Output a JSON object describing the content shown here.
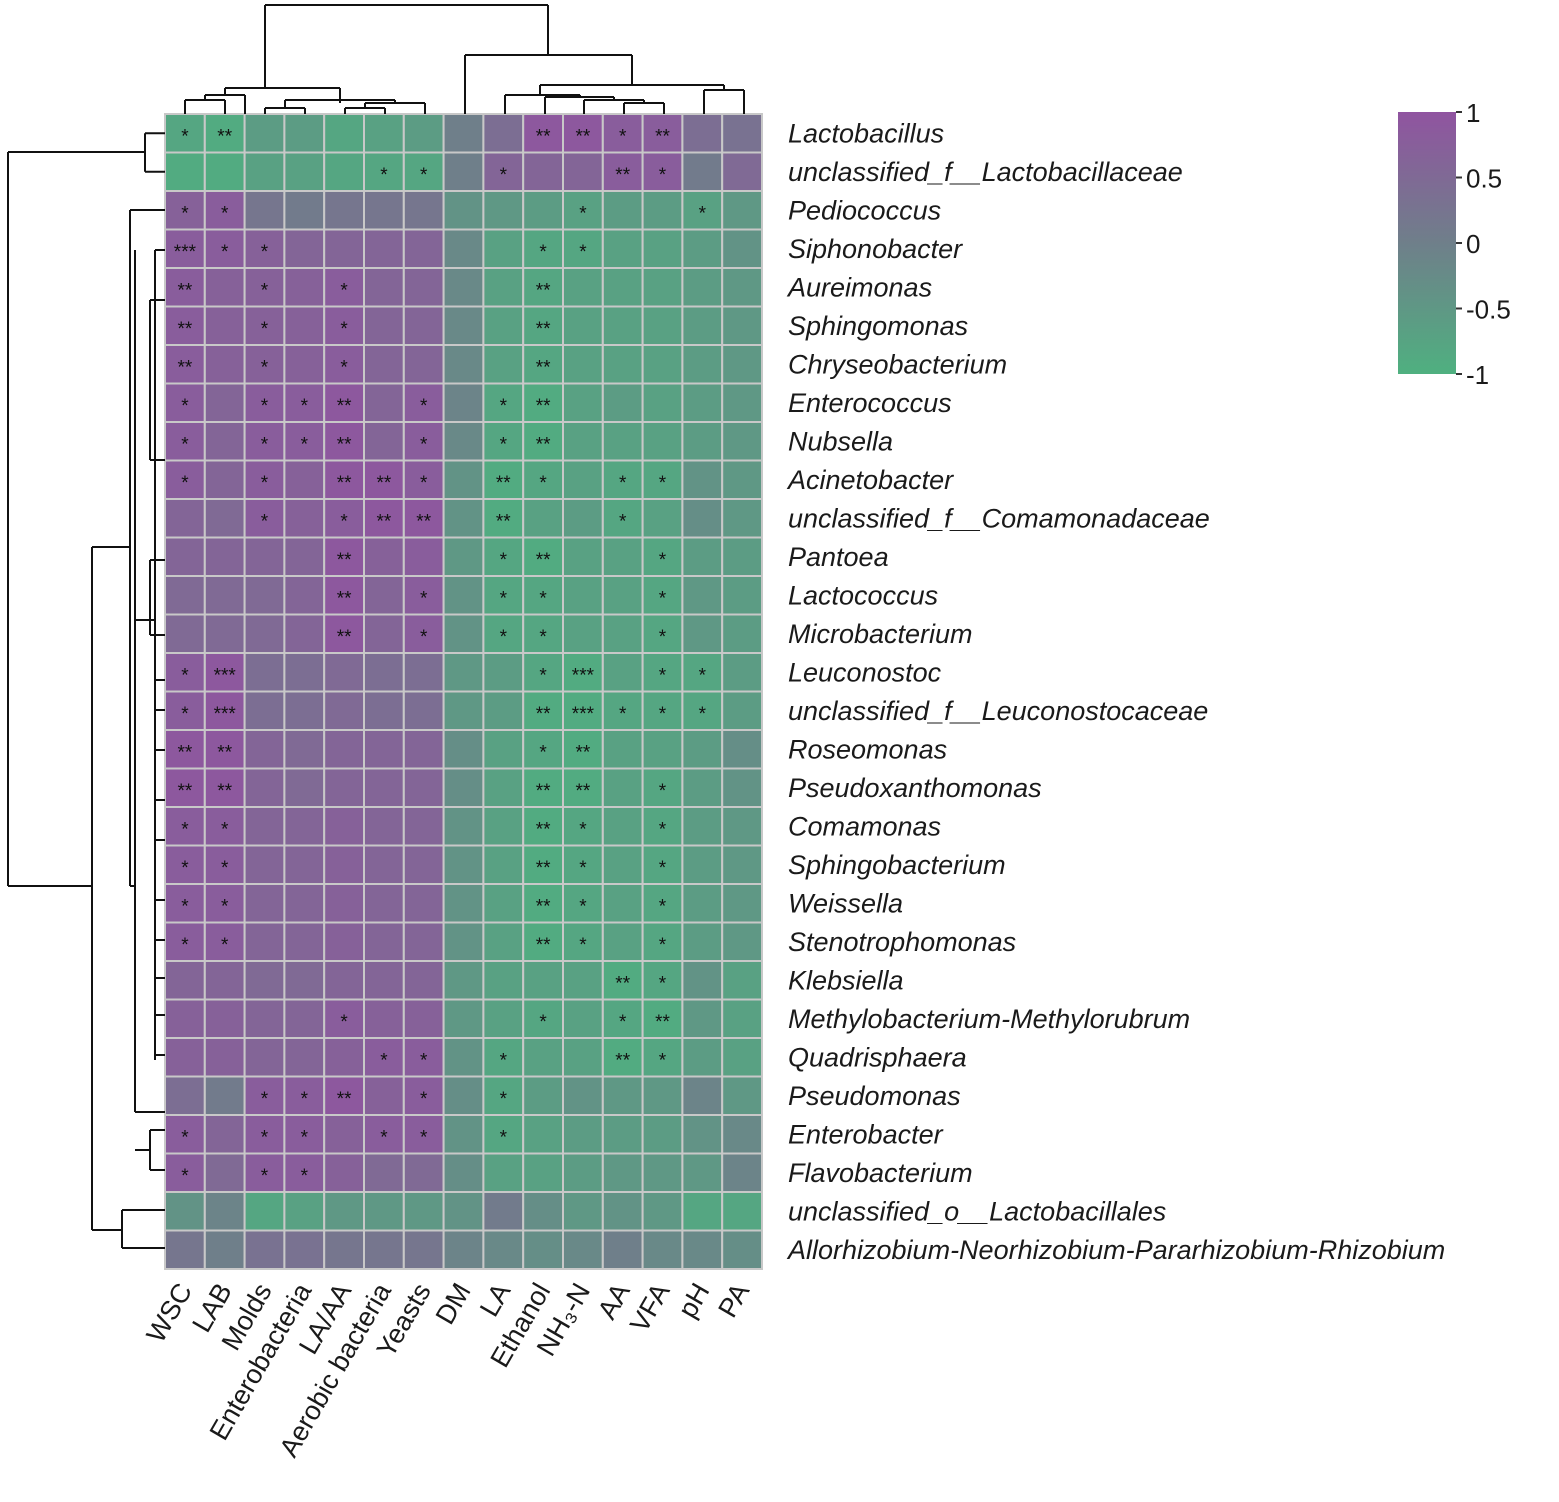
{
  "chart_data": {
    "type": "heatmap",
    "title": "",
    "columns": [
      "WSC",
      "LAB",
      "Molds",
      "Enterobacteria",
      "LA/AA",
      "Aerobic bacteria",
      "Yeasts",
      "DM",
      "LA",
      "Ethanol",
      "NH₃-N",
      "AA",
      "VFA",
      "pH",
      "PA"
    ],
    "rows": [
      "Lactobacillus",
      "unclassified_f__Lactobacillaceae",
      "Pediococcus",
      "Siphonobacter",
      "Aureimonas",
      "Sphingomonas",
      "Chryseobacterium",
      "Enterococcus",
      "Nubsella",
      "Acinetobacter",
      "unclassified_f__Comamonadaceae",
      "Pantoea",
      "Lactococcus",
      "Microbacterium",
      "Leuconostoc",
      "unclassified_f__Leuconostocaceae",
      "Roseomonas",
      "Pseudoxanthomonas",
      "Comamonas",
      "Sphingobacterium",
      "Weissella",
      "Stenotrophomonas",
      "Klebsiella",
      "Methylobacterium-Methylorubrum",
      "Quadrisphaera",
      "Pseudomonas",
      "Enterobacter",
      "Flavobacterium",
      "unclassified_o__Lactobacillales",
      "Allorhizobium-Neorhizobium-Pararhizobium-Rhizobium"
    ],
    "values": [
      [
        -0.8,
        -0.9,
        -0.6,
        -0.6,
        -0.8,
        -0.7,
        -0.6,
        0.0,
        0.4,
        0.9,
        0.9,
        0.8,
        0.8,
        0.4,
        0.3
      ],
      [
        -0.9,
        -0.9,
        -0.7,
        -0.7,
        -0.8,
        -0.8,
        -0.8,
        0.0,
        0.6,
        0.6,
        0.6,
        0.8,
        0.8,
        0.1,
        0.5
      ],
      [
        0.7,
        0.8,
        0.2,
        0.1,
        0.2,
        0.2,
        0.2,
        -0.4,
        -0.5,
        -0.6,
        -0.7,
        -0.6,
        -0.6,
        -0.7,
        -0.5
      ],
      [
        0.8,
        0.8,
        0.7,
        0.6,
        0.6,
        0.6,
        0.6,
        -0.2,
        -0.7,
        -0.8,
        -0.8,
        -0.7,
        -0.7,
        -0.6,
        -0.4
      ],
      [
        0.8,
        0.7,
        0.7,
        0.7,
        0.8,
        0.6,
        0.6,
        -0.2,
        -0.7,
        -0.8,
        -0.7,
        -0.7,
        -0.7,
        -0.6,
        -0.5
      ],
      [
        0.8,
        0.7,
        0.7,
        0.7,
        0.8,
        0.6,
        0.6,
        -0.2,
        -0.7,
        -0.8,
        -0.7,
        -0.7,
        -0.7,
        -0.6,
        -0.5
      ],
      [
        0.8,
        0.7,
        0.7,
        0.7,
        0.8,
        0.6,
        0.6,
        -0.2,
        -0.7,
        -0.8,
        -0.7,
        -0.7,
        -0.7,
        -0.6,
        -0.5
      ],
      [
        0.8,
        0.6,
        0.8,
        0.8,
        0.9,
        0.6,
        0.8,
        -0.1,
        -0.8,
        -0.9,
        -0.7,
        -0.6,
        -0.7,
        -0.6,
        -0.5
      ],
      [
        0.8,
        0.6,
        0.8,
        0.8,
        0.9,
        0.6,
        0.8,
        -0.2,
        -0.8,
        -0.9,
        -0.7,
        -0.7,
        -0.7,
        -0.6,
        -0.5
      ],
      [
        0.8,
        0.6,
        0.8,
        0.7,
        0.9,
        0.9,
        0.8,
        -0.4,
        -0.9,
        -0.8,
        -0.7,
        -0.8,
        -0.8,
        -0.4,
        -0.5
      ],
      [
        0.6,
        0.5,
        0.8,
        0.7,
        0.8,
        0.9,
        0.9,
        -0.4,
        -0.9,
        -0.7,
        -0.6,
        -0.8,
        -0.7,
        -0.3,
        -0.5
      ],
      [
        0.6,
        0.6,
        0.6,
        0.6,
        0.9,
        0.7,
        0.8,
        -0.5,
        -0.8,
        -0.9,
        -0.7,
        -0.7,
        -0.8,
        -0.6,
        -0.6
      ],
      [
        0.5,
        0.5,
        0.5,
        0.6,
        0.9,
        0.6,
        0.8,
        -0.4,
        -0.8,
        -0.8,
        -0.7,
        -0.7,
        -0.8,
        -0.5,
        -0.6
      ],
      [
        0.5,
        0.5,
        0.5,
        0.6,
        0.9,
        0.6,
        0.8,
        -0.4,
        -0.8,
        -0.8,
        -0.7,
        -0.7,
        -0.8,
        -0.5,
        -0.6
      ],
      [
        0.8,
        0.9,
        0.4,
        0.4,
        0.5,
        0.4,
        0.4,
        -0.5,
        -0.6,
        -0.8,
        -0.9,
        -0.7,
        -0.8,
        -0.8,
        -0.6
      ],
      [
        0.8,
        0.9,
        0.4,
        0.4,
        0.5,
        0.4,
        0.4,
        -0.5,
        -0.6,
        -0.9,
        -0.9,
        -0.8,
        -0.8,
        -0.8,
        -0.6
      ],
      [
        0.9,
        0.9,
        0.6,
        0.5,
        0.6,
        0.6,
        0.6,
        -0.3,
        -0.7,
        -0.8,
        -0.9,
        -0.7,
        -0.7,
        -0.6,
        -0.3
      ],
      [
        0.9,
        0.9,
        0.6,
        0.5,
        0.6,
        0.6,
        0.6,
        -0.3,
        -0.7,
        -0.9,
        -0.9,
        -0.7,
        -0.8,
        -0.6,
        -0.4
      ],
      [
        0.8,
        0.8,
        0.6,
        0.6,
        0.7,
        0.6,
        0.6,
        -0.4,
        -0.7,
        -0.9,
        -0.8,
        -0.7,
        -0.8,
        -0.6,
        -0.5
      ],
      [
        0.8,
        0.8,
        0.6,
        0.6,
        0.7,
        0.6,
        0.6,
        -0.4,
        -0.7,
        -0.9,
        -0.8,
        -0.7,
        -0.8,
        -0.6,
        -0.5
      ],
      [
        0.8,
        0.8,
        0.6,
        0.6,
        0.7,
        0.6,
        0.6,
        -0.4,
        -0.7,
        -0.9,
        -0.8,
        -0.7,
        -0.8,
        -0.6,
        -0.5
      ],
      [
        0.8,
        0.8,
        0.6,
        0.6,
        0.7,
        0.6,
        0.6,
        -0.4,
        -0.7,
        -0.9,
        -0.8,
        -0.7,
        -0.8,
        -0.6,
        -0.5
      ],
      [
        0.6,
        0.6,
        0.5,
        0.5,
        0.6,
        0.6,
        0.6,
        -0.5,
        -0.7,
        -0.7,
        -0.7,
        -0.9,
        -0.8,
        -0.4,
        -0.7
      ],
      [
        0.7,
        0.7,
        0.6,
        0.6,
        0.8,
        0.7,
        0.7,
        -0.5,
        -0.7,
        -0.8,
        -0.7,
        -0.8,
        -0.9,
        -0.5,
        -0.7
      ],
      [
        0.7,
        0.7,
        0.6,
        0.6,
        0.7,
        0.8,
        0.8,
        -0.4,
        -0.8,
        -0.7,
        -0.7,
        -0.9,
        -0.8,
        -0.6,
        -0.7
      ],
      [
        0.4,
        0.1,
        0.8,
        0.8,
        0.9,
        0.7,
        0.8,
        -0.3,
        -0.8,
        -0.6,
        -0.4,
        -0.5,
        -0.5,
        -0.1,
        -0.5
      ],
      [
        0.8,
        0.6,
        0.8,
        0.8,
        0.7,
        0.8,
        0.8,
        -0.4,
        -0.8,
        -0.7,
        -0.6,
        -0.6,
        -0.6,
        -0.4,
        -0.2
      ],
      [
        0.8,
        0.5,
        0.8,
        0.8,
        0.7,
        0.5,
        0.5,
        -0.3,
        -0.7,
        -0.7,
        -0.6,
        -0.5,
        -0.5,
        -0.5,
        -0.1
      ],
      [
        -0.4,
        -0.1,
        -0.8,
        -0.7,
        -0.5,
        -0.5,
        -0.5,
        -0.4,
        0.1,
        -0.3,
        -0.5,
        -0.4,
        -0.5,
        -0.8,
        -0.8
      ],
      [
        0.2,
        0.0,
        0.3,
        0.3,
        0.2,
        0.2,
        0.2,
        -0.1,
        -0.2,
        -0.3,
        -0.2,
        0.0,
        -0.2,
        -0.2,
        -0.3
      ]
    ],
    "significance": [
      [
        "*",
        "**",
        "",
        "",
        "",
        "",
        "",
        "",
        "",
        "**",
        "**",
        "*",
        "**",
        "",
        ""
      ],
      [
        "",
        "",
        "",
        "",
        "",
        "*",
        "*",
        "",
        "*",
        "",
        "",
        "**",
        "*",
        "",
        ""
      ],
      [
        "*",
        "*",
        "",
        "",
        "",
        "",
        "",
        "",
        "",
        "",
        "*",
        "",
        "",
        "*",
        ""
      ],
      [
        "***",
        "*",
        "*",
        "",
        "",
        "",
        "",
        "",
        "",
        "*",
        "*",
        "",
        "",
        "",
        ""
      ],
      [
        "**",
        "",
        "*",
        "",
        "*",
        "",
        "",
        "",
        "",
        "**",
        "",
        "",
        "",
        "",
        ""
      ],
      [
        "**",
        "",
        "*",
        "",
        "*",
        "",
        "",
        "",
        "",
        "**",
        "",
        "",
        "",
        "",
        ""
      ],
      [
        "**",
        "",
        "*",
        "",
        "*",
        "",
        "",
        "",
        "",
        "**",
        "",
        "",
        "",
        "",
        ""
      ],
      [
        "*",
        "",
        "*",
        "*",
        "**",
        "",
        "*",
        "",
        "*",
        "**",
        "",
        "",
        "",
        "",
        ""
      ],
      [
        "*",
        "",
        "*",
        "*",
        "**",
        "",
        "*",
        "",
        "*",
        "**",
        "",
        "",
        "",
        "",
        ""
      ],
      [
        "*",
        "",
        "*",
        "",
        "**",
        "**",
        "*",
        "",
        "**",
        "*",
        "",
        "*",
        "*",
        "",
        ""
      ],
      [
        "",
        "",
        "*",
        "",
        "*",
        "**",
        "**",
        "",
        "**",
        "",
        "",
        "*",
        "",
        "",
        ""
      ],
      [
        "",
        "",
        "",
        "",
        "**",
        "",
        "",
        "",
        "*",
        "**",
        "",
        "",
        "*",
        "",
        ""
      ],
      [
        "",
        "",
        "",
        "",
        "**",
        "",
        "*",
        "",
        "*",
        "*",
        "",
        "",
        "*",
        "",
        ""
      ],
      [
        "",
        "",
        "",
        "",
        "**",
        "",
        "*",
        "",
        "*",
        "*",
        "",
        "",
        "*",
        "",
        ""
      ],
      [
        "*",
        "***",
        "",
        "",
        "",
        "",
        "",
        "",
        "",
        "*",
        "***",
        "",
        "*",
        "*",
        ""
      ],
      [
        "*",
        "***",
        "",
        "",
        "",
        "",
        "",
        "",
        "",
        "**",
        "***",
        "*",
        "*",
        "*",
        ""
      ],
      [
        "**",
        "**",
        "",
        "",
        "",
        "",
        "",
        "",
        "",
        "*",
        "**",
        "",
        "",
        "",
        ""
      ],
      [
        "**",
        "**",
        "",
        "",
        "",
        "",
        "",
        "",
        "",
        "**",
        "**",
        "",
        "*",
        "",
        ""
      ],
      [
        "*",
        "*",
        "",
        "",
        "",
        "",
        "",
        "",
        "",
        "**",
        "*",
        "",
        "*",
        "",
        ""
      ],
      [
        "*",
        "*",
        "",
        "",
        "",
        "",
        "",
        "",
        "",
        "**",
        "*",
        "",
        "*",
        "",
        ""
      ],
      [
        "*",
        "*",
        "",
        "",
        "",
        "",
        "",
        "",
        "",
        "**",
        "*",
        "",
        "*",
        "",
        ""
      ],
      [
        "*",
        "*",
        "",
        "",
        "",
        "",
        "",
        "",
        "",
        "**",
        "*",
        "",
        "*",
        "",
        ""
      ],
      [
        "",
        "",
        "",
        "",
        "",
        "",
        "",
        "",
        "",
        "",
        "",
        "**",
        "*",
        "",
        ""
      ],
      [
        "",
        "",
        "",
        "",
        "*",
        "",
        "",
        "",
        "",
        "*",
        "",
        "*",
        "**",
        "",
        ""
      ],
      [
        "",
        "",
        "",
        "",
        "",
        "*",
        "*",
        "",
        "*",
        "",
        "",
        "**",
        "*",
        "",
        ""
      ],
      [
        "",
        "",
        "*",
        "*",
        "**",
        "",
        "*",
        "",
        "*",
        "",
        "",
        "",
        "",
        "",
        ""
      ],
      [
        "*",
        "",
        "*",
        "*",
        "",
        "*",
        "*",
        "",
        "*",
        "",
        "",
        "",
        "",
        "",
        ""
      ],
      [
        "*",
        "",
        "*",
        "*",
        "",
        "",
        "",
        "",
        "",
        "",
        "",
        "",
        "",
        "",
        ""
      ],
      [
        "",
        "",
        "",
        "",
        "",
        "",
        "",
        "",
        "",
        "",
        "",
        "",
        "",
        "",
        ""
      ],
      [
        "",
        "",
        "",
        "",
        "",
        "",
        "",
        "",
        "",
        "",
        "",
        "",
        "",
        "",
        ""
      ]
    ],
    "legend": {
      "position": "top-right",
      "ticks": [
        "1",
        "0.5",
        "0",
        "-0.5",
        "-1"
      ],
      "range": [
        -1,
        1
      ]
    },
    "colors": {
      "high": "#9054a0",
      "mid": "#6f7f8a",
      "low": "#4fb080",
      "grid": "#c8c8c8"
    }
  }
}
